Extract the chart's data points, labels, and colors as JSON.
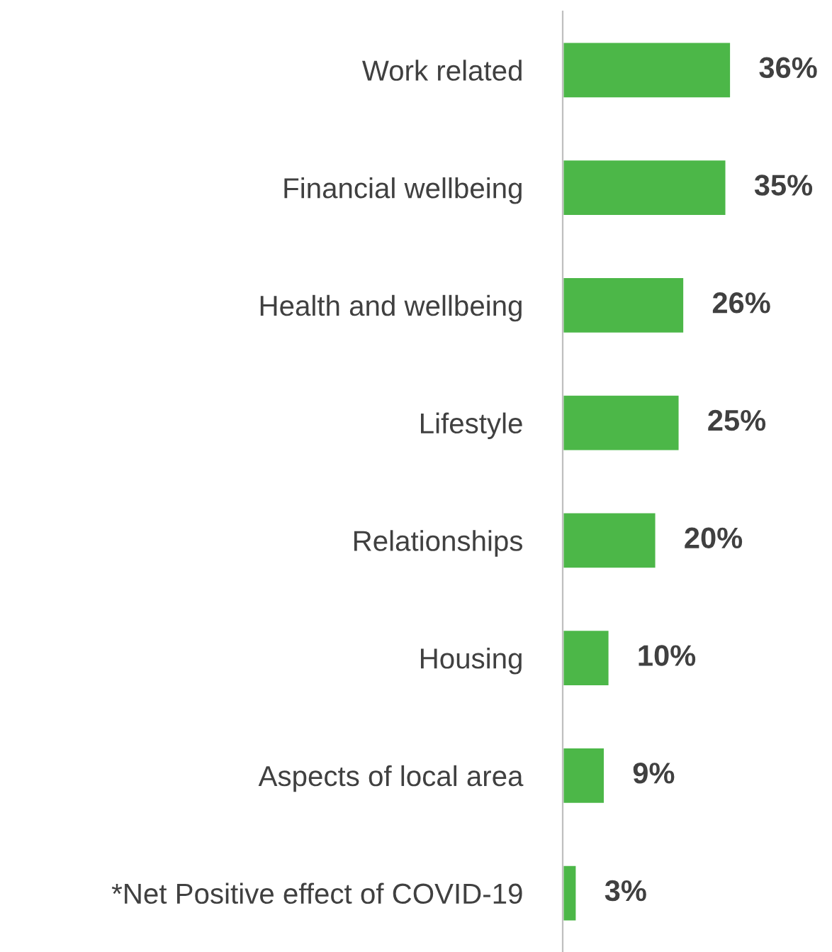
{
  "chart_data": {
    "type": "bar",
    "orientation": "horizontal",
    "data_labels": true,
    "categories": [
      "Work related",
      "Financial wellbeing",
      "Health and wellbeing",
      "Lifestyle",
      "Relationships",
      "Housing",
      "Aspects of local area",
      "*Net Positive effect of COVID-19"
    ],
    "values": [
      36,
      35,
      26,
      25,
      20,
      10,
      9,
      3
    ],
    "value_labels": [
      "36%",
      "35%",
      "26%",
      "25%",
      "20%",
      "10%",
      "9%",
      "3%"
    ],
    "color": "#4cb748",
    "grid": false,
    "legend": false
  }
}
